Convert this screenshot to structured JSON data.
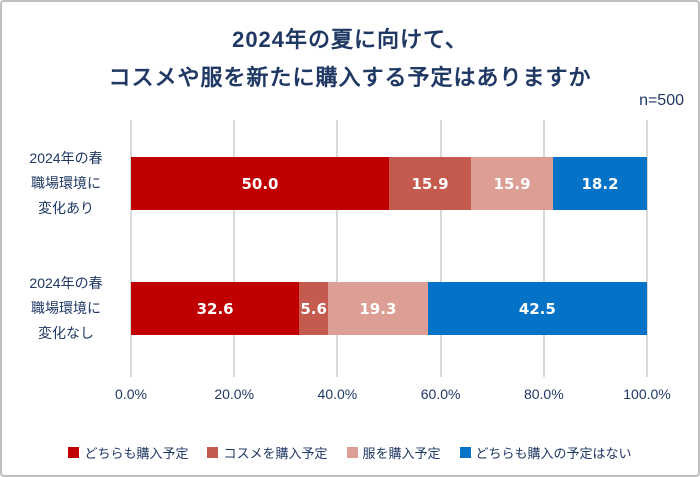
{
  "title": {
    "line1": "2024年の夏に向けて、",
    "line2": "コスメや服を新たに購入する予定はありますか"
  },
  "sample_label": "n=500",
  "colors": {
    "title_text": "#1F3864",
    "axis_text": "#1F3864",
    "gridline": "#D9D9D9",
    "frame_border": "#BFBFBF",
    "value_label_text": "#FFFFFF"
  },
  "chart_data": {
    "type": "bar",
    "orientation": "horizontal",
    "stacked": true,
    "title": "2024年の夏に向けて、コスメや服を新たに購入する予定はありますか",
    "sample_size": "n=500",
    "categories": [
      {
        "lines": [
          "2024年の春",
          "職場環境に",
          "変化あり"
        ]
      },
      {
        "lines": [
          "2024年の春",
          "職場環境に",
          "変化なし"
        ]
      }
    ],
    "series": [
      {
        "name": "どちらも購入予定",
        "color": "#C00000",
        "values": [
          50.0,
          32.6
        ]
      },
      {
        "name": "コスメを購入予定",
        "color": "#C55B4F",
        "values": [
          15.9,
          5.6
        ]
      },
      {
        "name": "服を購入予定",
        "color": "#DD9E96",
        "values": [
          15.9,
          19.3
        ]
      },
      {
        "name": "どちらも購入の予定はない",
        "color": "#0472C6",
        "values": [
          18.2,
          42.5
        ]
      }
    ],
    "x_axis": {
      "min": 0,
      "max": 100,
      "ticks": [
        {
          "value": 0,
          "label": "0.0%"
        },
        {
          "value": 20,
          "label": "20.0%"
        },
        {
          "value": 40,
          "label": "40.0%"
        },
        {
          "value": 60,
          "label": "60.0%"
        },
        {
          "value": 80,
          "label": "80.0%"
        },
        {
          "value": 100,
          "label": "100.0%"
        }
      ]
    },
    "value_label_decimals": 1,
    "grid": "vertical",
    "legend_position": "bottom"
  }
}
